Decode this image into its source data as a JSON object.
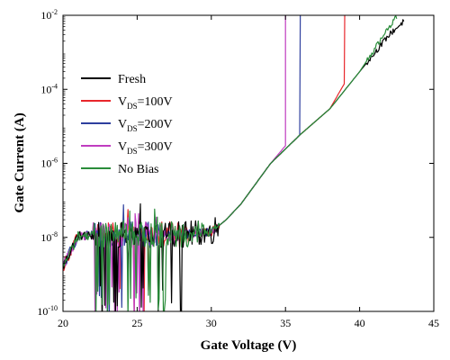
{
  "chart_data": {
    "type": "line",
    "xlabel": "Gate Voltage (V)",
    "ylabel": "Gate  Current (A)",
    "xlim": [
      20,
      45
    ],
    "ylim_log10": [
      -10,
      -2
    ],
    "y_scale": "log",
    "x_ticks": [
      "20",
      "25",
      "30",
      "35",
      "40",
      "45"
    ],
    "y_ticks": [
      {
        "base": "10",
        "exp": "-2"
      },
      {
        "base": "10",
        "exp": "-4"
      },
      {
        "base": "10",
        "exp": "-6"
      },
      {
        "base": "10",
        "exp": "-8"
      },
      {
        "base": "10",
        "exp": "-10"
      }
    ],
    "legend_position": "upper-left",
    "series": [
      {
        "name": "Fresh",
        "color": "#000000",
        "noise_until": 28.0,
        "main": [
          [
            20,
            1.6e-09
          ],
          [
            21,
            1.1e-08
          ],
          [
            25,
            1.2e-08
          ],
          [
            28,
            1.2e-08
          ],
          [
            30,
            1.4e-08
          ],
          [
            31,
            3e-08
          ],
          [
            32,
            8e-08
          ],
          [
            34,
            1e-06
          ],
          [
            36,
            6e-06
          ],
          [
            38,
            3e-05
          ],
          [
            40,
            0.0003
          ],
          [
            42,
            0.003
          ],
          [
            43,
            0.007
          ]
        ],
        "spike_at": null
      },
      {
        "name": "V_DS=100V",
        "legend_base": "V",
        "legend_sub": "DS",
        "legend_rest": "=100V",
        "color": "#e8262b",
        "noise_until": 26.0,
        "main": [
          [
            20,
            1.6e-09
          ],
          [
            21,
            1.1e-08
          ],
          [
            25,
            1.2e-08
          ],
          [
            28,
            1.2e-08
          ],
          [
            30,
            1.4e-08
          ],
          [
            31,
            3e-08
          ],
          [
            32,
            8e-08
          ],
          [
            34,
            1e-06
          ],
          [
            36,
            6e-06
          ],
          [
            38,
            3e-05
          ],
          [
            39,
            0.00015
          ]
        ],
        "spike_at": 39.0
      },
      {
        "name": "V_DS=200V",
        "legend_base": "V",
        "legend_sub": "DS",
        "legend_rest": "=200V",
        "color": "#2e3f9e",
        "noise_until": 24.0,
        "main": [
          [
            20,
            1.6e-09
          ],
          [
            21,
            1.1e-08
          ],
          [
            25,
            1.2e-08
          ],
          [
            28,
            1.2e-08
          ],
          [
            30,
            1.4e-08
          ],
          [
            31,
            3e-08
          ],
          [
            32,
            8e-08
          ],
          [
            34,
            1e-06
          ],
          [
            36,
            6e-06
          ]
        ],
        "spike_at": 36.0
      },
      {
        "name": "V_DS=300V",
        "legend_base": "V",
        "legend_sub": "DS",
        "legend_rest": "=300V",
        "color": "#c03cc0",
        "noise_until": 25.5,
        "main": [
          [
            20,
            1.6e-09
          ],
          [
            21,
            1.1e-08
          ],
          [
            25,
            1.2e-08
          ],
          [
            28,
            1.2e-08
          ],
          [
            30,
            1.4e-08
          ],
          [
            31,
            3e-08
          ],
          [
            32,
            8e-08
          ],
          [
            34,
            1e-06
          ],
          [
            35,
            3e-06
          ]
        ],
        "spike_at": 35.0
      },
      {
        "name": "No Bias",
        "color": "#2a8c3a",
        "noise_until": 27.0,
        "main": [
          [
            20,
            1.6e-09
          ],
          [
            21,
            1.1e-08
          ],
          [
            25,
            1.2e-08
          ],
          [
            28,
            1.2e-08
          ],
          [
            30,
            1.4e-08
          ],
          [
            31,
            3e-08
          ],
          [
            32,
            8e-08
          ],
          [
            34,
            1e-06
          ],
          [
            36,
            6e-06
          ],
          [
            38,
            3e-05
          ],
          [
            40,
            0.0003
          ],
          [
            42,
            0.005
          ],
          [
            42.5,
            0.009
          ]
        ],
        "spike_at": null
      }
    ]
  }
}
